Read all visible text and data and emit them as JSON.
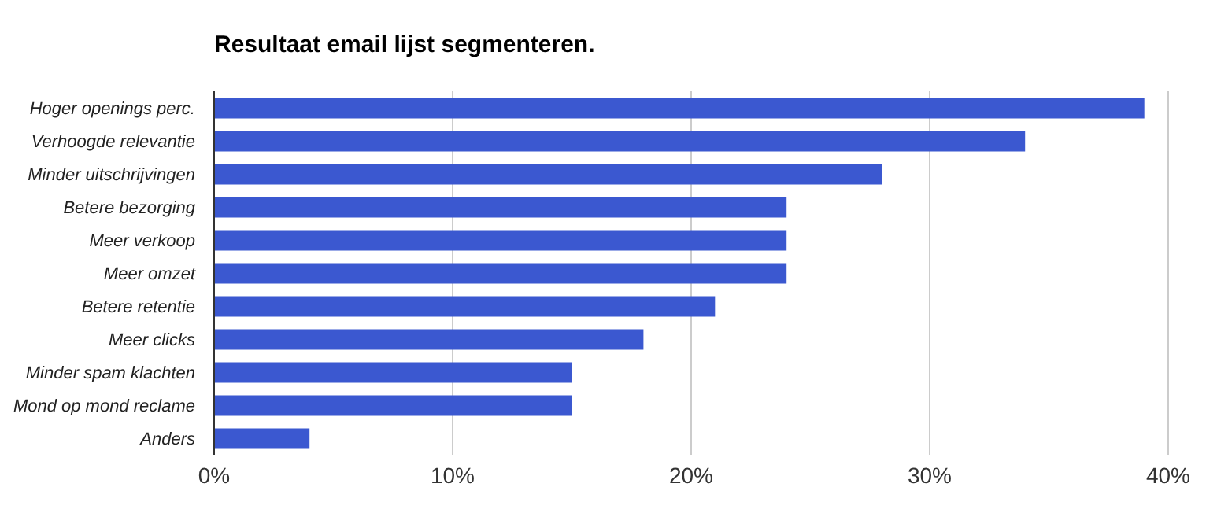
{
  "chart_data": {
    "type": "bar",
    "orientation": "horizontal",
    "title": "Resultaat email lijst segmenteren.",
    "categories": [
      "Hoger openings perc.",
      "Verhoogde relevantie",
      "Minder uitschrijvingen",
      "Betere bezorging",
      "Meer verkoop",
      "Meer omzet",
      "Betere retentie",
      "Meer clicks",
      "Minder spam klachten",
      "Mond op mond reclame",
      "Anders"
    ],
    "values": [
      39,
      34,
      28,
      24,
      24,
      24,
      21,
      18,
      15,
      15,
      4
    ],
    "color": "#3b58d0",
    "xlim": [
      0,
      40
    ],
    "xticks": [
      {
        "value": 0,
        "label": "0%"
      },
      {
        "value": 10,
        "label": "10%"
      },
      {
        "value": 20,
        "label": "20%"
      },
      {
        "value": 30,
        "label": "30%"
      },
      {
        "value": 40,
        "label": "40%"
      }
    ],
    "grid": "x",
    "legend": false
  }
}
